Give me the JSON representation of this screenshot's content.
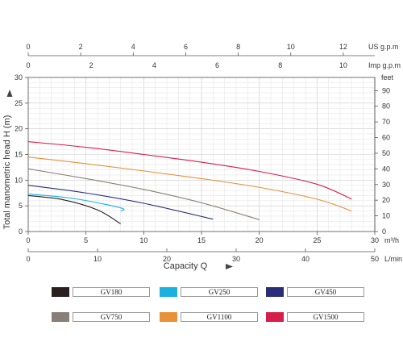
{
  "chart_data": {
    "type": "line",
    "xlabel": "Capacity  Q",
    "ylabel": "Total  manometric  head  H  (m)",
    "x_primary_unit": "m³/h",
    "xlim": [
      0,
      30
    ],
    "x_ticks": [
      "0",
      "5",
      "10",
      "15",
      "20",
      "25",
      "30"
    ],
    "ylim": [
      0,
      30
    ],
    "y_ticks": [
      "0",
      "5",
      "10",
      "15",
      "20",
      "25",
      "30"
    ],
    "grid": true,
    "secondary_axes": {
      "lmin": {
        "unit": "L/min",
        "max": 50,
        "ticks": [
          "0",
          "10",
          "20",
          "30",
          "40",
          "50"
        ]
      },
      "us_gpm": {
        "unit": "US g.p.m",
        "max": 13.2,
        "ticks": [
          "0",
          "2",
          "4",
          "6",
          "8",
          "10",
          "12"
        ]
      },
      "imp_gpm": {
        "unit": "Imp g.p.m",
        "max": 11,
        "ticks": [
          "0",
          "2",
          "4",
          "6",
          "8",
          "10"
        ]
      },
      "feet": {
        "unit": "feet",
        "max": 98.4,
        "ticks": [
          "0",
          "10",
          "20",
          "30",
          "40",
          "50",
          "60",
          "70",
          "80",
          "90"
        ]
      }
    },
    "series": [
      {
        "name": "GV180",
        "color": "#2b2020",
        "x": [
          0,
          3,
          6,
          8
        ],
        "y": [
          7,
          6.2,
          4.2,
          1.5
        ]
      },
      {
        "name": "GV250",
        "color": "#1ab0e0",
        "x": [
          0,
          4,
          8,
          8
        ],
        "y": [
          7.3,
          6.4,
          4.6,
          4
        ]
      },
      {
        "name": "GV450",
        "color": "#2a2e7a",
        "x": [
          0,
          5,
          10,
          16
        ],
        "y": [
          9,
          7.5,
          5.5,
          2.4
        ]
      },
      {
        "name": "GV750",
        "color": "#8a7e78",
        "x": [
          0,
          5,
          10,
          15,
          20
        ],
        "y": [
          12.2,
          10.3,
          8.2,
          5.6,
          2.3
        ]
      },
      {
        "name": "GV1100",
        "color": "#e8903a",
        "x": [
          0,
          5,
          10,
          15,
          20,
          25,
          28
        ],
        "y": [
          14.5,
          13.2,
          11.8,
          10.3,
          8.6,
          6.3,
          4
        ]
      },
      {
        "name": "GV1500",
        "color": "#d61e4a",
        "x": [
          0,
          5,
          10,
          15,
          20,
          25,
          28
        ],
        "y": [
          17.5,
          16.4,
          15,
          13.5,
          11.7,
          9.2,
          6.3
        ]
      }
    ]
  }
}
